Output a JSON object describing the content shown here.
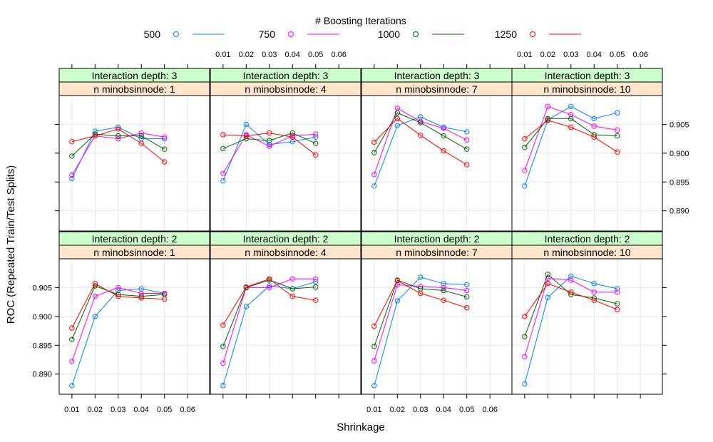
{
  "chart_data": {
    "type": "line",
    "title": "",
    "xlabel": "Shrinkage",
    "ylabel": "ROC (Repeated Train/Test Splits)",
    "legend": {
      "title": "# Boosting Iterations",
      "placement": "top"
    },
    "x": [
      0.01,
      0.02,
      0.03,
      0.04,
      0.05,
      0.06
    ],
    "x_ticks": [
      0.01,
      0.02,
      0.03,
      0.04,
      0.05,
      0.06
    ],
    "x_tick_labels": [
      "0.01",
      "0.02",
      "0.03",
      "0.04",
      "0.05",
      "0.06"
    ],
    "ylim": [
      0.8865,
      0.91
    ],
    "y_ticks": [
      0.89,
      0.895,
      0.9,
      0.905
    ],
    "y_tick_labels": [
      "0.890",
      "0.895",
      "0.900",
      "0.905"
    ],
    "grid": true,
    "series_styles": [
      {
        "name": "500",
        "color": "#0080ff"
      },
      {
        "name": "750",
        "color": "#ff00ff"
      },
      {
        "name": "1000",
        "color": "#006400"
      },
      {
        "name": "1250",
        "color": "#ff0000"
      }
    ],
    "panels": [
      {
        "strip_top": "Interaction depth: 3",
        "strip_bottom": "n minobsinnode:  1",
        "series": [
          {
            "name": "500",
            "values": [
              0.8956,
              0.9038,
              0.9045,
              0.9025,
              0.9025,
              null
            ]
          },
          {
            "name": "750",
            "values": [
              0.8962,
              0.903,
              0.9025,
              0.9035,
              0.9028,
              null
            ]
          },
          {
            "name": "1000",
            "values": [
              0.8995,
              0.9033,
              0.903,
              0.903,
              0.9007,
              null
            ]
          },
          {
            "name": "1250",
            "values": [
              0.902,
              0.903,
              0.9042,
              0.9017,
              0.8985,
              null
            ]
          }
        ]
      },
      {
        "strip_top": "Interaction depth: 3",
        "strip_bottom": "n minobsinnode:  4",
        "series": [
          {
            "name": "500",
            "values": [
              0.8952,
              0.905,
              0.9015,
              0.902,
              0.9028,
              null
            ]
          },
          {
            "name": "750",
            "values": [
              0.8965,
              0.9032,
              0.9012,
              0.903,
              0.9033,
              null
            ]
          },
          {
            "name": "1000",
            "values": [
              0.9008,
              0.9025,
              0.9022,
              0.9035,
              0.9017,
              null
            ]
          },
          {
            "name": "1250",
            "values": [
              0.9032,
              0.903,
              0.9035,
              0.9028,
              0.8997,
              null
            ]
          }
        ]
      },
      {
        "strip_top": "Interaction depth: 3",
        "strip_bottom": "n minobsinnode:  7",
        "series": [
          {
            "name": "500",
            "values": [
              0.8943,
              0.9048,
              0.9063,
              0.9045,
              0.9037,
              null
            ]
          },
          {
            "name": "750",
            "values": [
              0.8963,
              0.9078,
              0.9055,
              0.9043,
              0.9023,
              null
            ]
          },
          {
            "name": "1000",
            "values": [
              0.9001,
              0.907,
              0.9053,
              0.903,
              0.9007,
              null
            ]
          },
          {
            "name": "1250",
            "values": [
              0.9019,
              0.906,
              0.9031,
              0.9004,
              0.898,
              null
            ]
          }
        ]
      },
      {
        "strip_top": "Interaction depth: 3",
        "strip_bottom": "n minobsinnode: 10",
        "series": [
          {
            "name": "500",
            "values": [
              0.8943,
              0.9058,
              0.9081,
              0.906,
              0.907,
              null
            ]
          },
          {
            "name": "750",
            "values": [
              0.897,
              0.9081,
              0.9067,
              0.9047,
              0.904,
              null
            ]
          },
          {
            "name": "1000",
            "values": [
              0.901,
              0.906,
              0.906,
              0.9032,
              0.903,
              null
            ]
          },
          {
            "name": "1250",
            "values": [
              0.9025,
              0.9057,
              0.9045,
              0.9028,
              0.9002,
              null
            ]
          }
        ]
      },
      {
        "strip_top": "Interaction depth: 2",
        "strip_bottom": "n minobsinnode:  1",
        "series": [
          {
            "name": "500",
            "values": [
              0.888,
              0.9,
              0.9045,
              0.9048,
              0.904,
              null
            ]
          },
          {
            "name": "750",
            "values": [
              0.8922,
              0.9035,
              0.905,
              0.904,
              0.904,
              null
            ]
          },
          {
            "name": "1000",
            "values": [
              0.896,
              0.9053,
              0.9038,
              0.9035,
              0.9038,
              null
            ]
          },
          {
            "name": "1250",
            "values": [
              0.898,
              0.9057,
              0.9035,
              0.9032,
              0.903,
              null
            ]
          }
        ]
      },
      {
        "strip_top": "Interaction depth: 2",
        "strip_bottom": "n minobsinnode:  4",
        "series": [
          {
            "name": "500",
            "values": [
              0.888,
              0.9017,
              0.9053,
              0.9048,
              0.906,
              null
            ]
          },
          {
            "name": "750",
            "values": [
              0.8919,
              0.905,
              0.905,
              0.9065,
              0.9065,
              null
            ]
          },
          {
            "name": "1000",
            "values": [
              0.8948,
              0.905,
              0.9063,
              0.9048,
              0.9051,
              null
            ]
          },
          {
            "name": "1250",
            "values": [
              0.8985,
              0.9051,
              0.9065,
              0.9035,
              0.9028,
              null
            ]
          }
        ]
      },
      {
        "strip_top": "Interaction depth: 2",
        "strip_bottom": "n minobsinnode:  7",
        "series": [
          {
            "name": "500",
            "values": [
              0.888,
              0.9027,
              0.9068,
              0.9057,
              0.9055,
              null
            ]
          },
          {
            "name": "750",
            "values": [
              0.8923,
              0.9055,
              0.9052,
              0.905,
              0.9045,
              null
            ]
          },
          {
            "name": "1000",
            "values": [
              0.8948,
              0.9063,
              0.9048,
              0.9045,
              0.9034,
              null
            ]
          },
          {
            "name": "1250",
            "values": [
              0.8983,
              0.9062,
              0.904,
              0.9028,
              0.9015,
              null
            ]
          }
        ]
      },
      {
        "strip_top": "Interaction depth: 2",
        "strip_bottom": "n minobsinnode: 10",
        "series": [
          {
            "name": "500",
            "values": [
              0.8883,
              0.9033,
              0.907,
              0.9057,
              0.9048,
              null
            ]
          },
          {
            "name": "750",
            "values": [
              0.893,
              0.9066,
              0.9063,
              0.9042,
              0.9042,
              null
            ]
          },
          {
            "name": "1000",
            "values": [
              0.8965,
              0.9073,
              0.9038,
              0.9032,
              0.9022,
              null
            ]
          },
          {
            "name": "1250",
            "values": [
              0.9,
              0.9057,
              0.9042,
              0.9028,
              0.9012,
              null
            ]
          }
        ]
      }
    ]
  }
}
